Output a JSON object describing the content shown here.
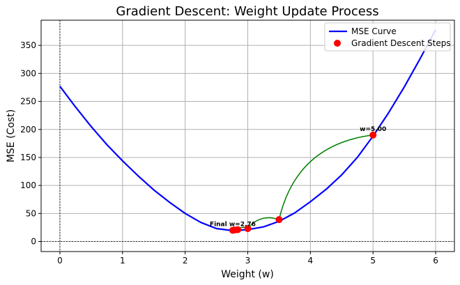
{
  "chart_data": {
    "type": "line",
    "title": "Gradient Descent: Weight Update Process",
    "xlabel": "Weight (w)",
    "ylabel": "MSE (Cost)",
    "xlim": [
      -0.3,
      6.3
    ],
    "ylim": [
      -18,
      395
    ],
    "xticks": [
      0,
      1,
      2,
      3,
      4,
      5,
      6
    ],
    "yticks": [
      0,
      50,
      100,
      150,
      200,
      250,
      300,
      350
    ],
    "grid": true,
    "legend_position": "top-right",
    "series": [
      {
        "name": "MSE Curve",
        "kind": "line",
        "color": "#0000ff",
        "x": [
          0,
          0.25,
          0.5,
          0.75,
          1,
          1.25,
          1.5,
          1.75,
          2,
          2.25,
          2.5,
          2.75,
          3,
          3.25,
          3.5,
          3.75,
          4,
          4.25,
          4.5,
          4.75,
          5,
          5.25,
          5.5,
          5.75,
          6
        ],
        "y": [
          277,
          240,
          205,
          173,
          144,
          117,
          92,
          70,
          50,
          34,
          23,
          19.5,
          21,
          26,
          36,
          51,
          71,
          93,
          119,
          150,
          188,
          230,
          276,
          326,
          378
        ]
      },
      {
        "name": "Gradient Descent Steps",
        "kind": "scatter",
        "color": "#ff0000",
        "x": [
          5.0,
          3.5,
          3.0,
          2.84,
          2.79,
          2.76
        ],
        "y": [
          190,
          39,
          23,
          21,
          20.5,
          20
        ]
      }
    ],
    "step_arrow_color": "#008000",
    "annotations": [
      {
        "text": "w=5.00",
        "x": 5.0,
        "y": 190
      },
      {
        "text": "Final w=2.76",
        "x": 2.76,
        "y": 20
      }
    ]
  }
}
